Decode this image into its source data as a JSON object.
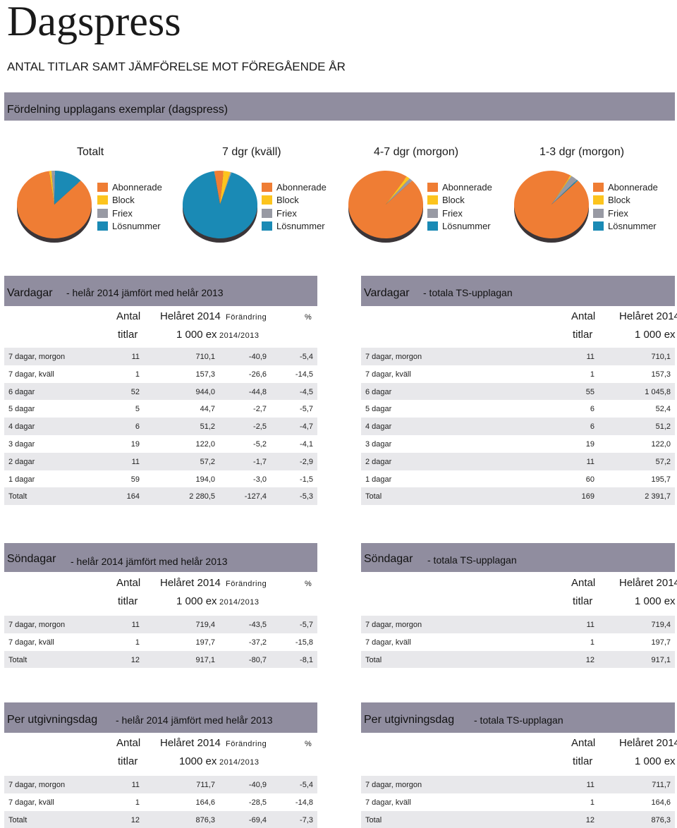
{
  "page_title": "Dagspress",
  "page_subtitle": "ANTAL TITLAR SAMT JÄMFÖRELSE MOT FÖREGÅENDE ÅR",
  "distribution": {
    "band_title": "Fördelning upplagans exemplar (dagspress)",
    "legend_labels": [
      "Abonnerade",
      "Block",
      "Friex",
      "Lösnummer"
    ],
    "colors": {
      "Abonnerade": "#ef7d34",
      "Block": "#fcc41e",
      "Friex": "#989aa4",
      "Lösnummer": "#1a8ab5"
    },
    "charts": [
      {
        "label": "Totalt",
        "slices": [
          {
            "name": "Abonnerade",
            "value": 85.3
          },
          {
            "name": "Block",
            "value": 1.0
          },
          {
            "name": "Friex",
            "value": 1.5
          },
          {
            "name": "Lösnummer",
            "value": 12.2
          }
        ]
      },
      {
        "label": "7 dgr (kväll)",
        "slices": [
          {
            "name": "Abonnerade",
            "value": 4.0
          },
          {
            "name": "Block",
            "value": 3.0
          },
          {
            "name": "Friex",
            "value": 0.5
          },
          {
            "name": "Lösnummer",
            "value": 92.5
          }
        ]
      },
      {
        "label": "4-7 dgr (morgon)",
        "slices": [
          {
            "name": "Abonnerade",
            "value": 97.0
          },
          {
            "name": "Block",
            "value": 1.5
          },
          {
            "name": "Friex",
            "value": 1.5
          },
          {
            "name": "Lösnummer",
            "value": 0.0
          }
        ]
      },
      {
        "label": "1-3 dgr (morgon)",
        "slices": [
          {
            "name": "Abonnerade",
            "value": 96.0
          },
          {
            "name": "Block",
            "value": 0.5
          },
          {
            "name": "Friex",
            "value": 3.0
          },
          {
            "name": "Lösnummer",
            "value": 0.5
          }
        ]
      }
    ]
  },
  "headers": {
    "antal": "Antal",
    "titlar": "titlar",
    "helaret": "Helåret 2014",
    "ex": "1 000 ex",
    "ex_alt": "1000 ex",
    "forandring": "Förändring",
    "pct": "%",
    "period": "2014/2013"
  },
  "vardagar": {
    "left_title": "Vardagar",
    "left_sub": "- helår 2014 jämfört med helår 2013",
    "right_title": "Vardagar",
    "right_sub": "- totala TS-upplagan",
    "left_rows": [
      [
        "7 dagar, morgon",
        "11",
        "710,1",
        "-40,9",
        "-5,4"
      ],
      [
        "7 dagar, kväll",
        "1",
        "157,3",
        "-26,6",
        "-14,5"
      ],
      [
        "6 dagar",
        "52",
        "944,0",
        "-44,8",
        "-4,5"
      ],
      [
        "5 dagar",
        "5",
        "44,7",
        "-2,7",
        "-5,7"
      ],
      [
        "4 dagar",
        "6",
        "51,2",
        "-2,5",
        "-4,7"
      ],
      [
        "3 dagar",
        "19",
        "122,0",
        "-5,2",
        "-4,1"
      ],
      [
        "2 dagar",
        "11",
        "57,2",
        "-1,7",
        "-2,9"
      ],
      [
        "1 dagar",
        "59",
        "194,0",
        "-3,0",
        "-1,5"
      ],
      [
        "Totalt",
        "164",
        "2 280,5",
        "-127,4",
        "-5,3"
      ]
    ],
    "right_rows": [
      [
        "7 dagar, morgon",
        "11",
        "710,1"
      ],
      [
        "7 dagar, kväll",
        "1",
        "157,3"
      ],
      [
        "6 dagar",
        "55",
        "1 045,8"
      ],
      [
        "5 dagar",
        "6",
        "52,4"
      ],
      [
        "4 dagar",
        "6",
        "51,2"
      ],
      [
        "3 dagar",
        "19",
        "122,0"
      ],
      [
        "2 dagar",
        "11",
        "57,2"
      ],
      [
        "1 dagar",
        "60",
        "195,7"
      ],
      [
        "Total",
        "169",
        "2 391,7"
      ]
    ]
  },
  "sondagar": {
    "left_title": "Söndagar",
    "left_sub": "- helår 2014 jämfört med helår 2013",
    "right_title": "Söndagar",
    "right_sub": "- totala TS-upplagan",
    "left_rows": [
      [
        "7 dagar, morgon",
        "11",
        "719,4",
        "-43,5",
        "-5,7"
      ],
      [
        "7 dagar, kväll",
        "1",
        "197,7",
        "-37,2",
        "-15,8"
      ],
      [
        "Totalt",
        "12",
        "917,1",
        "-80,7",
        "-8,1"
      ]
    ],
    "right_rows": [
      [
        "7 dagar, morgon",
        "11",
        "719,4"
      ],
      [
        "7 dagar, kväll",
        "1",
        "197,7"
      ],
      [
        "Total",
        "12",
        "917,1"
      ]
    ]
  },
  "utgivningsdag": {
    "left_title": "Per utgivningsdag",
    "left_sub": "- helår 2014 jämfört med helår 2013",
    "right_title": "Per utgivningsdag",
    "right_sub": "- totala TS-upplagan",
    "left_rows": [
      [
        "7 dagar, morgon",
        "11",
        "711,7",
        "-40,9",
        "-5,4"
      ],
      [
        "7 dagar, kväll",
        "1",
        "164,6",
        "-28,5",
        "-14,8"
      ],
      [
        "Totalt",
        "12",
        "876,3",
        "-69,4",
        "-7,3"
      ]
    ],
    "right_rows": [
      [
        "7 dagar, morgon",
        "11",
        "711,7"
      ],
      [
        "7 dagar, kväll",
        "1",
        "164,6"
      ],
      [
        "Total",
        "12",
        "876,3"
      ]
    ]
  }
}
